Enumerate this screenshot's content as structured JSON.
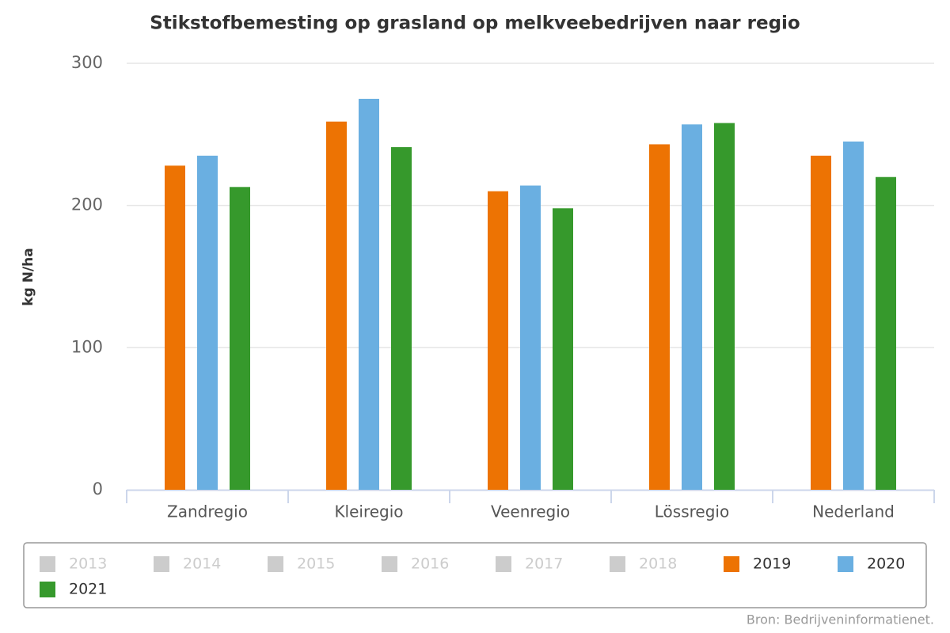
{
  "chart_data": {
    "type": "bar",
    "title": "Stikstofbemesting op grasland op melkveebedrijven naar regio",
    "y_label": "kg N/ha",
    "categories": [
      "Zandregio",
      "Kleiregio",
      "Veenregio",
      "Lössregio",
      "Nederland"
    ],
    "series": [
      {
        "name": "2013",
        "color": "#cccccc",
        "visible": false,
        "values": [
          null,
          null,
          null,
          null,
          null
        ]
      },
      {
        "name": "2014",
        "color": "#cccccc",
        "visible": false,
        "values": [
          null,
          null,
          null,
          null,
          null
        ]
      },
      {
        "name": "2015",
        "color": "#cccccc",
        "visible": false,
        "values": [
          null,
          null,
          null,
          null,
          null
        ]
      },
      {
        "name": "2016",
        "color": "#cccccc",
        "visible": false,
        "values": [
          null,
          null,
          null,
          null,
          null
        ]
      },
      {
        "name": "2017",
        "color": "#cccccc",
        "visible": false,
        "values": [
          null,
          null,
          null,
          null,
          null
        ]
      },
      {
        "name": "2018",
        "color": "#cccccc",
        "visible": false,
        "values": [
          null,
          null,
          null,
          null,
          null
        ]
      },
      {
        "name": "2019",
        "color": "#ed7303",
        "visible": true,
        "values": [
          228,
          259,
          210,
          243,
          235
        ]
      },
      {
        "name": "2020",
        "color": "#6aafe1",
        "visible": true,
        "values": [
          235,
          275,
          214,
          257,
          245
        ]
      },
      {
        "name": "2021",
        "color": "#36992c",
        "visible": true,
        "values": [
          213,
          241,
          198,
          258,
          220
        ]
      }
    ],
    "ylim": [
      0,
      300
    ],
    "yticks": [
      0,
      100,
      200,
      300
    ],
    "grid": true,
    "legend": "bottom",
    "credits": "Bron: Bedrijveninformatienet."
  }
}
